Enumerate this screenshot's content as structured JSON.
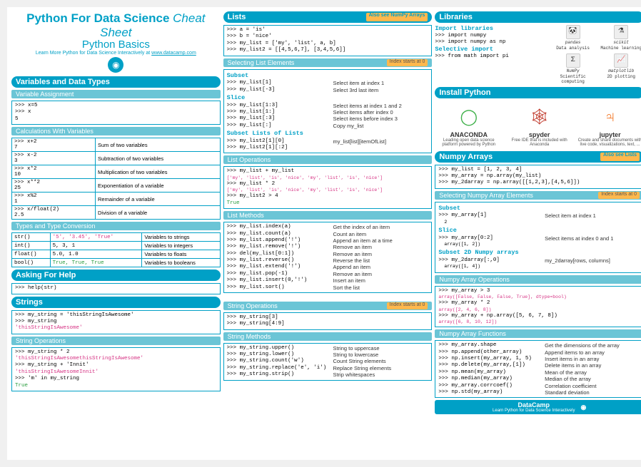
{
  "header": {
    "title_a": "Python For Data Science",
    "title_b": "Cheat Sheet",
    "subtitle": "Python Basics",
    "learn_pre": "Learn More Python for Data Science Interactively at",
    "learn_link": "www.datacamp.com"
  },
  "sec": {
    "vars": "Variables and Data Types",
    "varassign": "Variable Assignment",
    "calc": "Calculations With Variables",
    "types": "Types and Type Conversion",
    "help": "Asking For Help",
    "strings": "Strings",
    "strops": "String Operations",
    "lists": "Lists",
    "sellist": "Selecting List Elements",
    "listops": "List Operations",
    "listmeth": "List Methods",
    "strops2": "String Operations",
    "strmeth": "String Methods",
    "libs": "Libraries",
    "install": "Install Python",
    "numpy": "Numpy Arrays",
    "selnp": "Selecting Numpy Array Elements",
    "npops": "Numpy Array Operations",
    "npfunc": "Numpy Array Functions",
    "alsonp": "Also see NumPy Arrays",
    "alsolists": "Also see Lists",
    "idx0": "Index starts at 0"
  },
  "varassign": [
    ">>> x=5",
    ">>> x",
    "5"
  ],
  "calc": [
    {
      "c": ">>> x+2",
      "o": "7",
      "d": "Sum of two variables"
    },
    {
      "c": ">>> x-2",
      "o": "3",
      "d": "Subtraction of two variables"
    },
    {
      "c": ">>> x*2",
      "o": "10",
      "d": "Multiplication of two variables"
    },
    {
      "c": ">>> x**2",
      "o": "25",
      "d": "Exponentiation of a variable"
    },
    {
      "c": ">>> x%2",
      "o": "1",
      "d": "Remainder of a variable"
    },
    {
      "c": ">>> x/float(2)",
      "o": "2.5",
      "d": "Division of a variable"
    }
  ],
  "types": [
    {
      "f": "str()",
      "v": "'5', '3.45', 'True'",
      "d": "Variables to strings",
      "cls": "str"
    },
    {
      "f": "int()",
      "v": "5, 3, 1",
      "d": "Variables to integers",
      "cls": "out"
    },
    {
      "f": "float()",
      "v": "5.0, 1.0",
      "d": "Variables to floats",
      "cls": "out"
    },
    {
      "f": "bool()",
      "v": "True, True, True",
      "d": "Variables to booleans",
      "cls": "tr"
    }
  ],
  "help": ">>> help(str)",
  "str1": [
    ">>> my_string = 'thisStringIsAwesome'",
    ">>> my_string",
    "'thisStringIsAwesome'"
  ],
  "strops1": [
    ">>> my_string * 2",
    "'thisStringIsAwesomethisStringIsAwesome'",
    ">>> my_string + 'Innit'",
    "'thisStringIsAwesomeInnit'",
    ">>> 'm' in my_string",
    "True"
  ],
  "listdef": [
    ">>> a = 'is'",
    ">>> b = 'nice'",
    ">>> my_list = ['my', 'list', a, b]",
    ">>> my_list2 = [[4,5,6,7], [3,4,5,6]]"
  ],
  "subh": {
    "subset": "Subset",
    "slice": "Slice",
    "sublists": "Subset Lists of Lists",
    "sub2d": "Subset 2D Numpy arrays"
  },
  "sellist": [
    {
      "h": "Subset"
    },
    {
      "c": ">>> my_list[1]",
      "d": "Select item at index 1"
    },
    {
      "c": ">>> my_list[-3]",
      "d": "Select 3rd last item"
    },
    {
      "h": "Slice"
    },
    {
      "c": ">>> my_list[1:3]",
      "d": "Select items at index 1 and 2"
    },
    {
      "c": ">>> my_list[1:]",
      "d": "Select items after index 0"
    },
    {
      "c": ">>> my_list[:3]",
      "d": "Select items before index 3"
    },
    {
      "c": ">>> my_list[:]",
      "d": "Copy my_list"
    },
    {
      "h": "Subset Lists of Lists"
    },
    {
      "c": ">>> my_list2[1][0]",
      "d": "my_list[list][itemOfList]"
    },
    {
      "c": ">>> my_list2[1][:2]",
      "d": ""
    }
  ],
  "listops": [
    ">>> my_list + my_list",
    "['my', 'list', 'is', 'nice', 'my', 'list', 'is', 'nice']",
    ">>> my_list * 2",
    "['my', 'list', 'is', 'nice', 'my', 'list', 'is', 'nice']",
    ">>> my_list2 > 4",
    "True"
  ],
  "listmeth": [
    {
      "c": ">>> my_list.index(a)",
      "d": "Get the index of an item"
    },
    {
      "c": ">>> my_list.count(a)",
      "d": "Count an item"
    },
    {
      "c": ">>> my_list.append('!')",
      "d": "Append an item at a time"
    },
    {
      "c": ">>> my_list.remove('!')",
      "d": "Remove an item"
    },
    {
      "c": ">>> del(my_list[0:1])",
      "d": "Remove an item"
    },
    {
      "c": ">>> my_list.reverse()",
      "d": "Reverse the list"
    },
    {
      "c": ">>> my_list.extend('!')",
      "d": "Append an item"
    },
    {
      "c": ">>> my_list.pop(-1)",
      "d": "Remove an item"
    },
    {
      "c": ">>> my_list.insert(0,'!')",
      "d": "Insert an item"
    },
    {
      "c": ">>> my_list.sort()",
      "d": "Sort the list"
    }
  ],
  "strops2": [
    ">>> my_string[3]",
    ">>> my_string[4:9]"
  ],
  "strmeth": [
    {
      "c": ">>> my_string.upper()",
      "d": "String to uppercase"
    },
    {
      "c": ">>> my_string.lower()",
      "d": "String to lowercase"
    },
    {
      "c": ">>> my_string.count('w')",
      "d": "Count String elements"
    },
    {
      "c": ">>> my_string.replace('e', 'i')",
      "d": "Replace String elements"
    },
    {
      "c": ">>> my_string.strip()",
      "d": "Strip whitespaces"
    }
  ],
  "libs": {
    "imp": "Import libraries",
    "sel": "Selective import",
    "lines": [
      ">>> import numpy",
      ">>> import numpy as np",
      ">>> from math import pi"
    ],
    "icons": [
      {
        "g": "🐼",
        "n": "pandas",
        "d": "Data analysis"
      },
      {
        "g": "⚗",
        "n": "scikit",
        "d": "Machine learning"
      },
      {
        "g": "Σ",
        "n": "NumPy",
        "d": "Scientific computing"
      },
      {
        "g": "📈",
        "n": "matplotlib",
        "d": "2D plotting"
      }
    ]
  },
  "install": [
    {
      "g": "◯",
      "n": "ANACONDA",
      "d": "Leading open data science platform powered by Python",
      "cls": "ana"
    },
    {
      "g": "🕸",
      "n": "spyder",
      "d": "Free IDE that is included with Anaconda",
      "cls": "spy"
    },
    {
      "g": "♃",
      "n": "jupyter",
      "d": "Create and share documents with live code, visualizations, text, ...",
      "cls": "jup"
    }
  ],
  "npdef": [
    ">>> my_list = [1, 2, 3, 4]",
    ">>> my_array = np.array(my_list)",
    ">>> my_2darray = np.array([[1,2,3],[4,5,6]])"
  ],
  "selnp": [
    {
      "h": "Subset"
    },
    {
      "c": ">>> my_array[1]",
      "o": "2",
      "d": "Select item at index 1"
    },
    {
      "h": "Slice"
    },
    {
      "c": ">>> my_array[0:2]",
      "o": "array([1, 2])",
      "d": "Select items at index 0 and 1"
    },
    {
      "h": "Subset 2D Numpy arrays"
    },
    {
      "c": ">>> my_2darray[:,0]",
      "o": "array([1, 4])",
      "d": "my_2darray[rows, columns]"
    }
  ],
  "npops": [
    ">>> my_array > 3",
    "array([False, False, False, True], dtype=bool)",
    ">>> my_array * 2",
    "array([2, 4, 6, 8])",
    ">>> my_array + np.array([5, 6, 7, 8])",
    "array([6, 8, 10, 12])"
  ],
  "npfunc": [
    {
      "c": ">>> my_array.shape",
      "d": "Get the dimensions of the array"
    },
    {
      "c": ">>> np.append(other_array)",
      "d": "Append items to an array"
    },
    {
      "c": ">>> np.insert(my_array, 1, 5)",
      "d": "Insert items in an array"
    },
    {
      "c": ">>> np.delete(my_array,[1])",
      "d": "Delete items in an array"
    },
    {
      "c": ">>> np.mean(my_array)",
      "d": "Mean of the array"
    },
    {
      "c": ">>> np.median(my_array)",
      "d": "Median of the array"
    },
    {
      "c": ">>> my_array.corrcoef()",
      "d": "Correlation coefficient"
    },
    {
      "c": ">>> np.std(my_array)",
      "d": "Standard deviation"
    }
  ],
  "footer": {
    "name": "DataCamp",
    "sub": "Learn Python for Data Science Interactively"
  }
}
